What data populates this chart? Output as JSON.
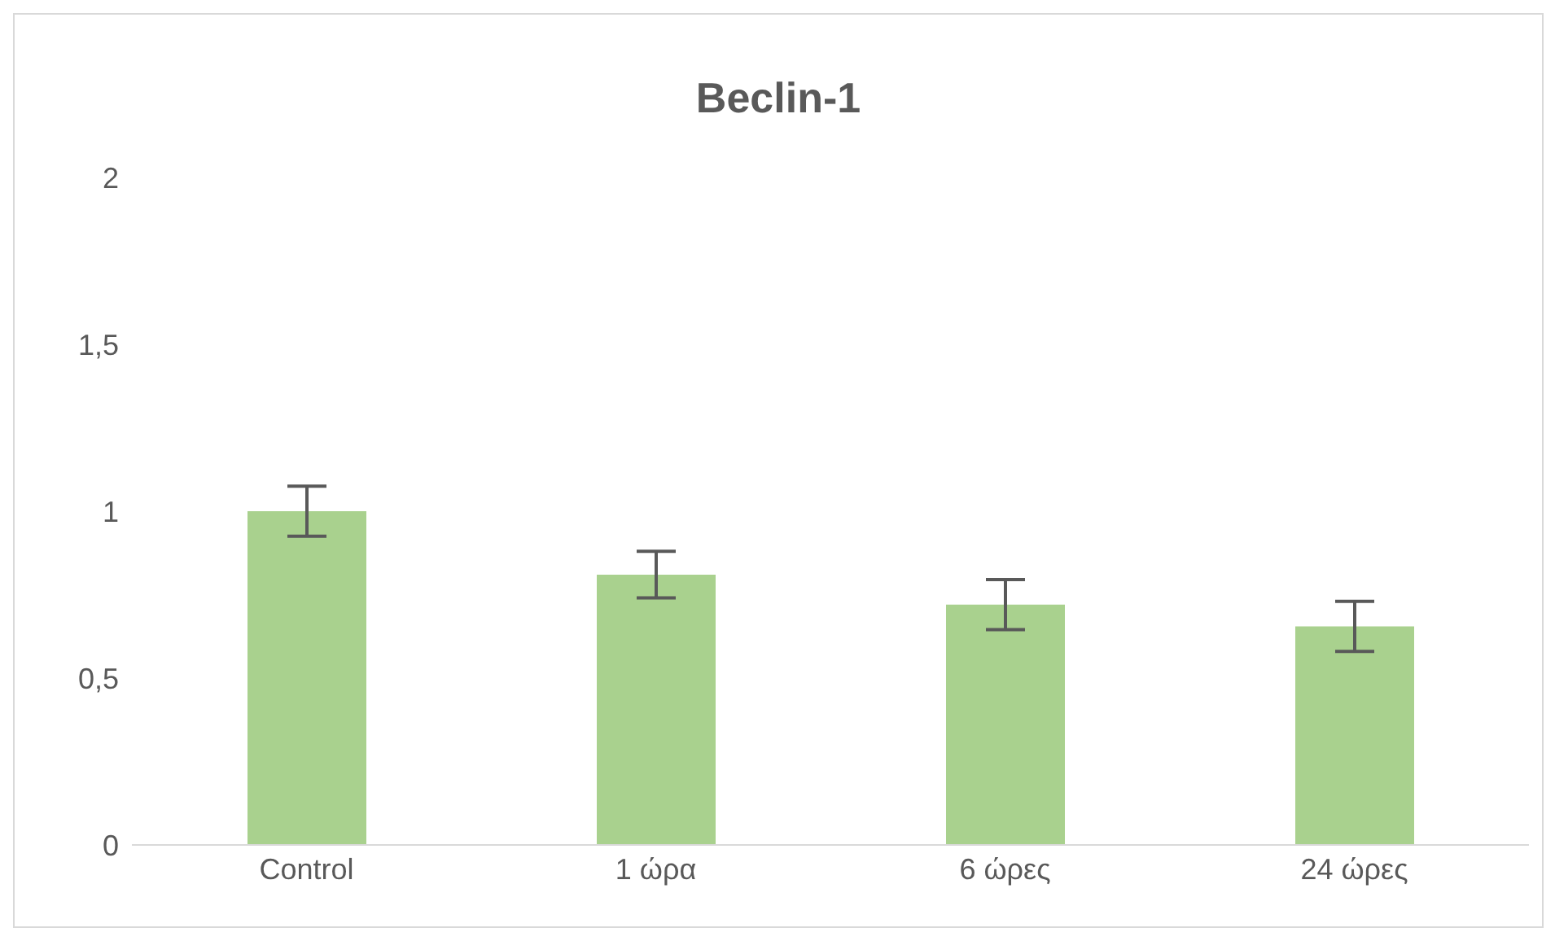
{
  "chart_data": {
    "type": "bar",
    "title": "Beclin-1",
    "categories": [
      "Control",
      "1 ώρα",
      "6 ώρες",
      "24 ώρες"
    ],
    "values": [
      1.0,
      0.81,
      0.72,
      0.655
    ],
    "errors": [
      0.075,
      0.07,
      0.075,
      0.075
    ],
    "color": "#a9d18e",
    "ylim": [
      0,
      2
    ],
    "yticks": [
      0,
      {
        "value": 0.5,
        "label": "0,5"
      },
      1,
      {
        "value": 1.5,
        "label": "1,5"
      },
      2
    ],
    "legend": false
  }
}
